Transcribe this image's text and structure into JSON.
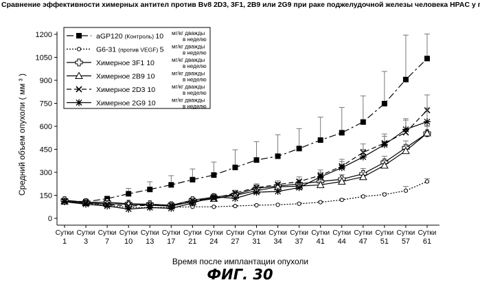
{
  "chart_data": {
    "type": "line",
    "title": "Сравнение эффективности химерных антител против Bv8 2D3, 3F1, 2B9 или 2G9 при раке поджелудочной железы человека HPAC у голых мышей Balb-c",
    "xlabel": "Время после имплантации опухоли",
    "ylabel": "Средний объем опухоли   ( мм ³ )",
    "x_prefix": "Сутки",
    "categories": [
      "1",
      "3",
      "7",
      "10",
      "13",
      "17",
      "21",
      "24",
      "27",
      "31",
      "34",
      "37",
      "41",
      "44",
      "47",
      "51",
      "57",
      "61"
    ],
    "ylim": [
      0,
      1200
    ],
    "yticks": [
      0,
      150,
      300,
      450,
      600,
      750,
      900,
      1050,
      1200
    ],
    "grid": false,
    "legend_position": "top-left",
    "series": [
      {
        "id": "agp120",
        "name": "aGP120",
        "name_suffix": "(Контроль)",
        "dose": "10",
        "dose_unit": "мг/кг дважды в неделю",
        "color": "#000000",
        "dash": "10,4,3,4",
        "marker": "square",
        "values": [
          115,
          108,
          128,
          160,
          188,
          218,
          252,
          282,
          332,
          380,
          405,
          455,
          510,
          558,
          628,
          748,
          905,
          1042
        ],
        "errors": [
          15,
          10,
          12,
          35,
          50,
          60,
          70,
          85,
          115,
          120,
          140,
          130,
          150,
          165,
          170,
          210,
          290,
          160
        ]
      },
      {
        "id": "g631",
        "name": "G6-31",
        "name_suffix": "(против VEGF)",
        "dose": "5",
        "dose_unit": "мг/кг дважды в неделю",
        "color": "#000000",
        "dash": "2,2",
        "marker": "circle",
        "values": [
          112,
          100,
          85,
          70,
          70,
          72,
          75,
          75,
          80,
          85,
          88,
          95,
          105,
          120,
          142,
          155,
          180,
          240
        ],
        "errors": [
          8,
          5,
          5,
          4,
          4,
          4,
          4,
          4,
          4,
          5,
          5,
          6,
          6,
          8,
          8,
          10,
          28,
          18
        ]
      },
      {
        "id": "3f1",
        "name": "Химерное",
        "label": "3F1",
        "dose": "10",
        "dose_unit": "мг/кг дважды в неделю",
        "color": "#000000",
        "dash": "",
        "marker": "cross",
        "values": [
          118,
          105,
          105,
          95,
          92,
          85,
          118,
          138,
          155,
          195,
          210,
          225,
          240,
          255,
          290,
          365,
          460,
          555
        ],
        "errors": [
          12,
          8,
          8,
          10,
          10,
          10,
          12,
          15,
          15,
          20,
          20,
          25,
          25,
          30,
          35,
          40,
          45,
          50
        ]
      },
      {
        "id": "2b9",
        "name": "Химерное",
        "label": "2B9",
        "dose": "10",
        "dose_unit": "мг/кг дважды в неделю",
        "color": "#000000",
        "dash": "",
        "marker": "triangle",
        "values": [
          110,
          100,
          95,
          92,
          85,
          80,
          108,
          128,
          150,
          180,
          205,
          210,
          218,
          240,
          270,
          345,
          440,
          555
        ],
        "errors": [
          10,
          8,
          8,
          8,
          8,
          8,
          10,
          12,
          15,
          18,
          20,
          20,
          20,
          25,
          30,
          35,
          40,
          45
        ]
      },
      {
        "id": "2d3",
        "name": "Химерное",
        "label": "2D3",
        "dose": "10",
        "dose_unit": "мг/кг дважды в неделю",
        "color": "#000000",
        "dash": "7,4",
        "marker": "x",
        "values": [
          112,
          98,
          90,
          80,
          85,
          85,
          115,
          130,
          165,
          200,
          220,
          240,
          280,
          340,
          430,
          490,
          560,
          705
        ],
        "errors": [
          10,
          8,
          8,
          8,
          10,
          10,
          12,
          15,
          18,
          25,
          25,
          30,
          35,
          45,
          55,
          60,
          80,
          100
        ]
      },
      {
        "id": "2g9",
        "name": "Химерное",
        "label": "2G9",
        "dose": "10",
        "dose_unit": "мг/кг дважды в неделю",
        "color": "#000000",
        "dash": "",
        "marker": "star",
        "values": [
          108,
          92,
          80,
          60,
          70,
          65,
          100,
          140,
          130,
          170,
          175,
          200,
          270,
          330,
          400,
          480,
          580,
          630
        ],
        "errors": [
          10,
          8,
          8,
          8,
          8,
          8,
          10,
          12,
          15,
          20,
          22,
          25,
          30,
          40,
          50,
          55,
          70,
          90
        ]
      }
    ]
  },
  "figure_caption": "ФИГ. 30"
}
